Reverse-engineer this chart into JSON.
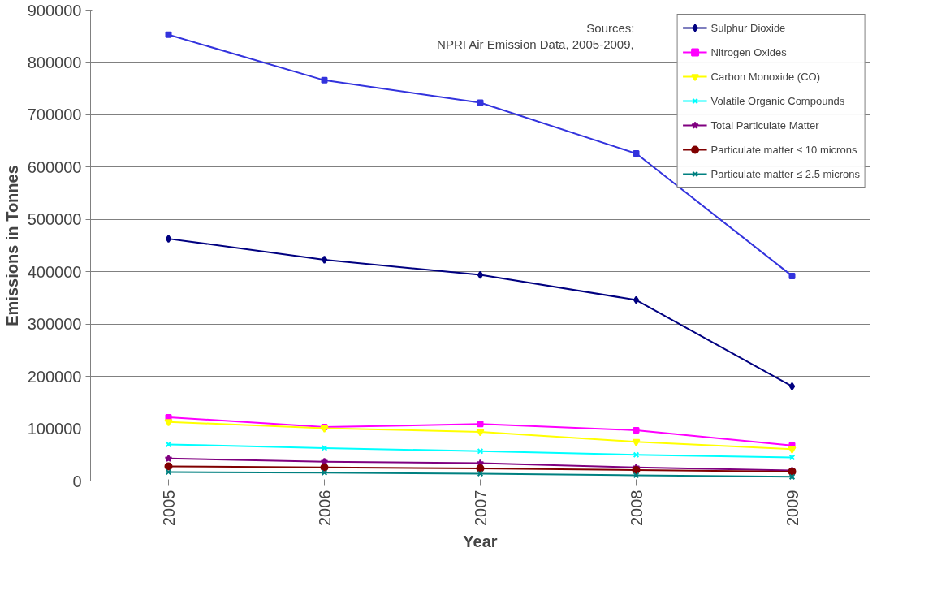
{
  "chart_data": {
    "type": "line",
    "xlabel": "Year",
    "ylabel": "Emissions in Tonnes",
    "categories": [
      "2005",
      "2006",
      "2007",
      "2008",
      "2009"
    ],
    "ylim": [
      0,
      900000
    ],
    "yticks": [
      0,
      100000,
      200000,
      300000,
      400000,
      500000,
      600000,
      700000,
      800000,
      900000
    ],
    "grid": "y",
    "legend": "right",
    "annotations": [
      "Sources:",
      "NPRI Air Emission Data, 2005-2009,"
    ],
    "series": [
      {
        "color": "#3333dd",
        "marker": "square",
        "values": [
          853000,
          766000,
          723000,
          626000,
          392000
        ]
      },
      {
        "name": "Sulphur Dioxide",
        "color": "#000080",
        "marker": "diamond",
        "values": [
          463000,
          423000,
          394000,
          346000,
          181000
        ]
      },
      {
        "name": "Nitrogen Oxides",
        "color": "#ff00ff",
        "marker": "square",
        "values": [
          122000,
          103000,
          109000,
          97000,
          68000
        ]
      },
      {
        "name": "Carbon Monoxide (CO)",
        "color": "#ffff00",
        "marker": "triangle",
        "values": [
          113000,
          101000,
          94000,
          75000,
          61000
        ]
      },
      {
        "name": "Volatile Organic Compounds",
        "color": "#00ffff",
        "marker": "cross",
        "values": [
          70000,
          63000,
          57000,
          50000,
          45000
        ]
      },
      {
        "name": "Total Particulate Matter",
        "color": "#800080",
        "marker": "star",
        "values": [
          43000,
          37000,
          34000,
          26000,
          20000
        ]
      },
      {
        "name": "Particulate matter ≤ 10 microns",
        "color": "#800000",
        "marker": "circle",
        "values": [
          28000,
          26000,
          24000,
          21000,
          18000
        ]
      },
      {
        "name": "Particulate matter ≤ 2.5 microns",
        "color": "#008080",
        "marker": "cross",
        "values": [
          17000,
          16000,
          14000,
          11000,
          8000
        ]
      }
    ]
  }
}
